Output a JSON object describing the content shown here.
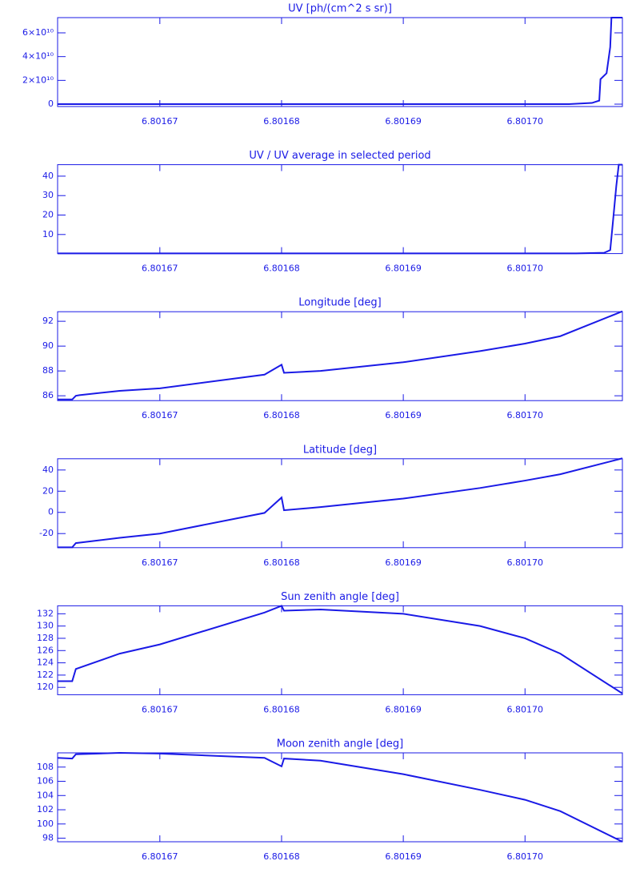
{
  "chart_data": [
    {
      "type": "line",
      "title": "UV [ph/(cm^2 s sr)]",
      "color": "#1a1ae6",
      "x": [
        6.8016616,
        6.8017036,
        6.8017055,
        6.8017061,
        6.8017062,
        6.8017067,
        6.801707,
        6.8017071,
        6.801708
      ],
      "values": [
        0,
        0,
        1000000000,
        3000000000,
        21000000000,
        26000000000,
        48000000000,
        72800000000,
        72800000000
      ],
      "xlim": [
        6.8016616,
        6.801708
      ],
      "xticks": [
        6.80167,
        6.80168,
        6.80169,
        {
          "value": 6.8017,
          "label": "6.80170"
        }
      ],
      "ylim": [
        -2000000000,
        72800000000
      ],
      "yticks": [
        0,
        {
          "value": 20000000000,
          "label": "2×10¹⁰"
        },
        {
          "value": 40000000000,
          "label": "4×10¹⁰"
        },
        {
          "value": 60000000000,
          "label": "6×10¹⁰"
        }
      ]
    },
    {
      "type": "line",
      "title": "UV / UV average in selected period",
      "color": "#1a1ae6",
      "x": [
        6.8016616,
        6.8017042,
        6.8017065,
        6.801707,
        6.8017072,
        6.8017075,
        6.8017077,
        6.801708
      ],
      "values": [
        0.3,
        0.3,
        0.6,
        2,
        15,
        35,
        45.9,
        45.9
      ],
      "xlim": [
        6.8016616,
        6.801708
      ],
      "xticks": [
        6.80167,
        6.80168,
        6.80169,
        {
          "value": 6.8017,
          "label": "6.80170"
        }
      ],
      "ylim": [
        0.2,
        45.9
      ],
      "yticks": [
        10,
        20,
        30,
        40
      ]
    },
    {
      "type": "line",
      "title": "Longitude [deg]",
      "color": "#1a1ae6",
      "x": [
        6.8016616,
        6.8016628,
        6.8016631,
        6.8016634,
        6.8016667,
        6.80167,
        6.8016786,
        6.80168,
        6.8016802,
        6.8016832,
        6.80169,
        6.8016963,
        6.8017,
        6.8017029,
        6.801708
      ],
      "values": [
        85.7,
        85.7,
        86.0,
        86.05,
        86.4,
        86.6,
        87.7,
        88.5,
        87.85,
        88.0,
        88.7,
        89.6,
        90.2,
        90.8,
        92.8
      ],
      "xlim": [
        6.8016616,
        6.801708
      ],
      "xticks": [
        6.80167,
        6.80168,
        6.80169,
        {
          "value": 6.8017,
          "label": "6.80170"
        }
      ],
      "ylim": [
        85.61,
        92.77
      ],
      "yticks": [
        86,
        88,
        90,
        92
      ]
    },
    {
      "type": "line",
      "title": "Latitude [deg]",
      "color": "#1a1ae6",
      "x": [
        6.8016616,
        6.8016628,
        6.8016631,
        6.8016667,
        6.80167,
        6.8016786,
        6.80168,
        6.8016802,
        6.8016832,
        6.80169,
        6.8016963,
        6.8017,
        6.8017029,
        6.801708
      ],
      "values": [
        -33,
        -33,
        -29,
        -24,
        -20,
        -0.5,
        14,
        2,
        5,
        13,
        23,
        30,
        36,
        51
      ],
      "xlim": [
        6.8016616,
        6.801708
      ],
      "xticks": [
        6.80167,
        6.80168,
        6.80169,
        {
          "value": 6.8017,
          "label": "6.80170"
        }
      ],
      "ylim": [
        -33.3,
        50.6
      ],
      "yticks": [
        -20,
        0,
        20,
        40
      ]
    },
    {
      "type": "line",
      "title": "Sun zenith angle [deg]",
      "color": "#1a1ae6",
      "x": [
        6.8016616,
        6.8016628,
        6.8016631,
        6.8016667,
        6.80167,
        6.8016786,
        6.80168,
        6.8016802,
        6.8016832,
        6.80169,
        6.8016963,
        6.8017,
        6.8017029,
        6.801708
      ],
      "values": [
        121,
        121,
        123,
        125.5,
        127,
        132.2,
        133.3,
        132.5,
        132.7,
        132.0,
        130,
        128,
        125.5,
        119.0
      ],
      "xlim": [
        6.8016616,
        6.801708
      ],
      "xticks": [
        6.80167,
        6.80168,
        6.80169,
        {
          "value": 6.8017,
          "label": "6.80170"
        }
      ],
      "ylim": [
        118.8,
        133.3
      ],
      "yticks": [
        120,
        122,
        124,
        126,
        128,
        130,
        132
      ]
    },
    {
      "type": "line",
      "title": "Moon zenith angle [deg]",
      "color": "#1a1ae6",
      "x": [
        6.8016616,
        6.8016628,
        6.8016631,
        6.8016667,
        6.80167,
        6.8016786,
        6.80168,
        6.8016802,
        6.8016832,
        6.80169,
        6.8016963,
        6.8017,
        6.8017029,
        6.801708
      ],
      "values": [
        109.3,
        109.2,
        109.8,
        110,
        109.9,
        109.3,
        108.1,
        109.2,
        108.9,
        107.0,
        104.8,
        103.4,
        101.8,
        97.5
      ],
      "xlim": [
        6.8016616,
        6.801708
      ],
      "xticks": [
        6.80167,
        6.80168,
        6.80169,
        {
          "value": 6.8017,
          "label": "6.80170"
        }
      ],
      "ylim": [
        97.5,
        110.0
      ],
      "yticks": [
        98,
        100,
        102,
        104,
        106,
        108
      ]
    }
  ]
}
